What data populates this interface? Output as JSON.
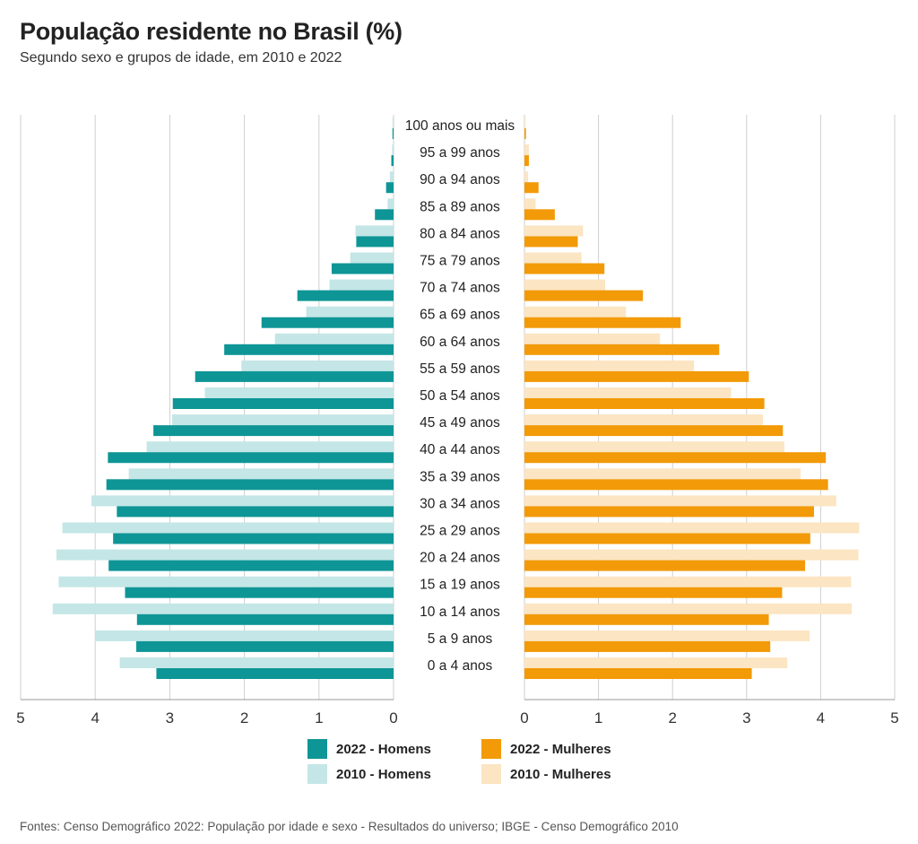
{
  "header": {
    "title": "População residente no Brasil (%)",
    "subtitle": "Segundo sexo e grupos de idade, em 2010 e 2022"
  },
  "footer": {
    "source": "Fontes: Censo Demográfico 2022: População por idade e sexo - Resultados do universo; IBGE - Censo Demográfico 2010"
  },
  "colors": {
    "homens_2022": "#0e9596",
    "homens_2010": "#c4e6e6",
    "mulheres_2022": "#f29a07",
    "mulheres_2010": "#fbe5c2",
    "grid": "#cfcfcf"
  },
  "legend": [
    {
      "label": "2022 - Homens",
      "series": "homens_2022"
    },
    {
      "label": "2022 - Mulheres",
      "series": "mulheres_2022"
    },
    {
      "label": "2010 - Homens",
      "series": "homens_2010"
    },
    {
      "label": "2010 - Mulheres",
      "series": "mulheres_2010"
    }
  ],
  "chart_data": {
    "type": "bar",
    "orientation": "horizontal-pyramid",
    "title": "População residente no Brasil (%)",
    "subtitle": "Segundo sexo e grupos de idade, em 2010 e 2022",
    "xlim": [
      0,
      5
    ],
    "xticks": [
      "0",
      "1",
      "2",
      "3",
      "4",
      "5"
    ],
    "grid": true,
    "legend_position": "bottom",
    "categories": [
      "100 anos ou mais",
      "95 a 99 anos",
      "90 a 94 anos",
      "85 a 89 anos",
      "80 a 84 anos",
      "75 a 79 anos",
      "70 a 74 anos",
      "65 a 69 anos",
      "60 a 64 anos",
      "55 a 59 anos",
      "50 a 54 anos",
      "45 a 49 anos",
      "40 a 44 anos",
      "35 a 39 anos",
      "30 a 34 anos",
      "25 a 29 anos",
      "20 a 24 anos",
      "15 a 19 anos",
      "10 a 14 anos",
      "5 a 9 anos",
      "0 a 4 anos"
    ],
    "series": [
      {
        "name": "2010 - Homens",
        "side": "left",
        "values": [
          0.005,
          0.02,
          0.05,
          0.08,
          0.51,
          0.58,
          0.86,
          1.17,
          1.59,
          2.04,
          2.53,
          2.97,
          3.31,
          3.55,
          4.05,
          4.44,
          4.52,
          4.49,
          4.57,
          4.0,
          3.67
        ]
      },
      {
        "name": "2022 - Homens",
        "side": "left",
        "values": [
          0.01,
          0.03,
          0.1,
          0.25,
          0.5,
          0.83,
          1.29,
          1.77,
          2.27,
          2.66,
          2.96,
          3.22,
          3.83,
          3.85,
          3.71,
          3.76,
          3.82,
          3.6,
          3.44,
          3.45,
          3.18
        ]
      },
      {
        "name": "2010 - Mulheres",
        "side": "right",
        "values": [
          0.01,
          0.06,
          0.05,
          0.15,
          0.79,
          0.77,
          1.09,
          1.37,
          1.83,
          2.29,
          2.79,
          3.22,
          3.51,
          3.73,
          4.21,
          4.52,
          4.51,
          4.41,
          4.42,
          3.85,
          3.55
        ]
      },
      {
        "name": "2022 - Mulheres",
        "side": "right",
        "values": [
          0.02,
          0.06,
          0.19,
          0.41,
          0.72,
          1.08,
          1.6,
          2.11,
          2.63,
          3.03,
          3.24,
          3.49,
          4.07,
          4.1,
          3.91,
          3.86,
          3.79,
          3.48,
          3.3,
          3.32,
          3.07
        ]
      }
    ]
  }
}
